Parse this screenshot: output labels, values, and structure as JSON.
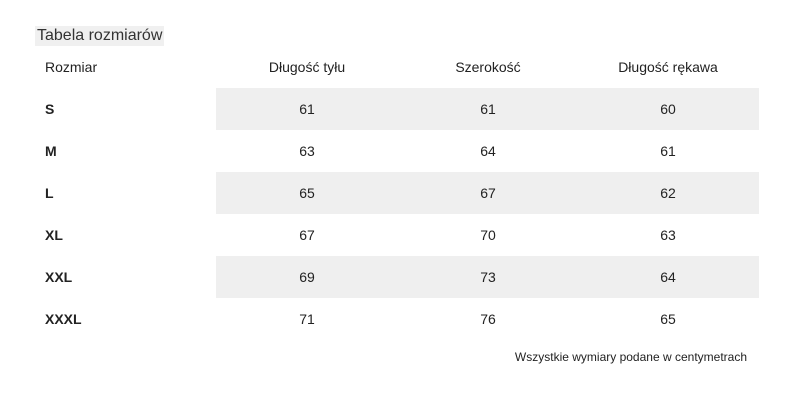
{
  "title": "Tabela rozmiarów",
  "headers": [
    "Rozmiar",
    "Długość tyłu",
    "Szerokość",
    "Długość rękawa"
  ],
  "rows": [
    {
      "size": "S",
      "values": [
        "61",
        "61",
        "60"
      ],
      "shaded": true
    },
    {
      "size": "M",
      "values": [
        "63",
        "64",
        "61"
      ],
      "shaded": false
    },
    {
      "size": "L",
      "values": [
        "65",
        "67",
        "62"
      ],
      "shaded": true
    },
    {
      "size": "XL",
      "values": [
        "67",
        "70",
        "63"
      ],
      "shaded": false
    },
    {
      "size": "XXL",
      "values": [
        "69",
        "73",
        "64"
      ],
      "shaded": true
    },
    {
      "size": "XXXL",
      "values": [
        "71",
        "76",
        "65"
      ],
      "shaded": false
    }
  ],
  "note": "Wszystkie wymiary podane w centymetrach",
  "colors": {
    "shade": "#efefef",
    "text": "#222222"
  }
}
